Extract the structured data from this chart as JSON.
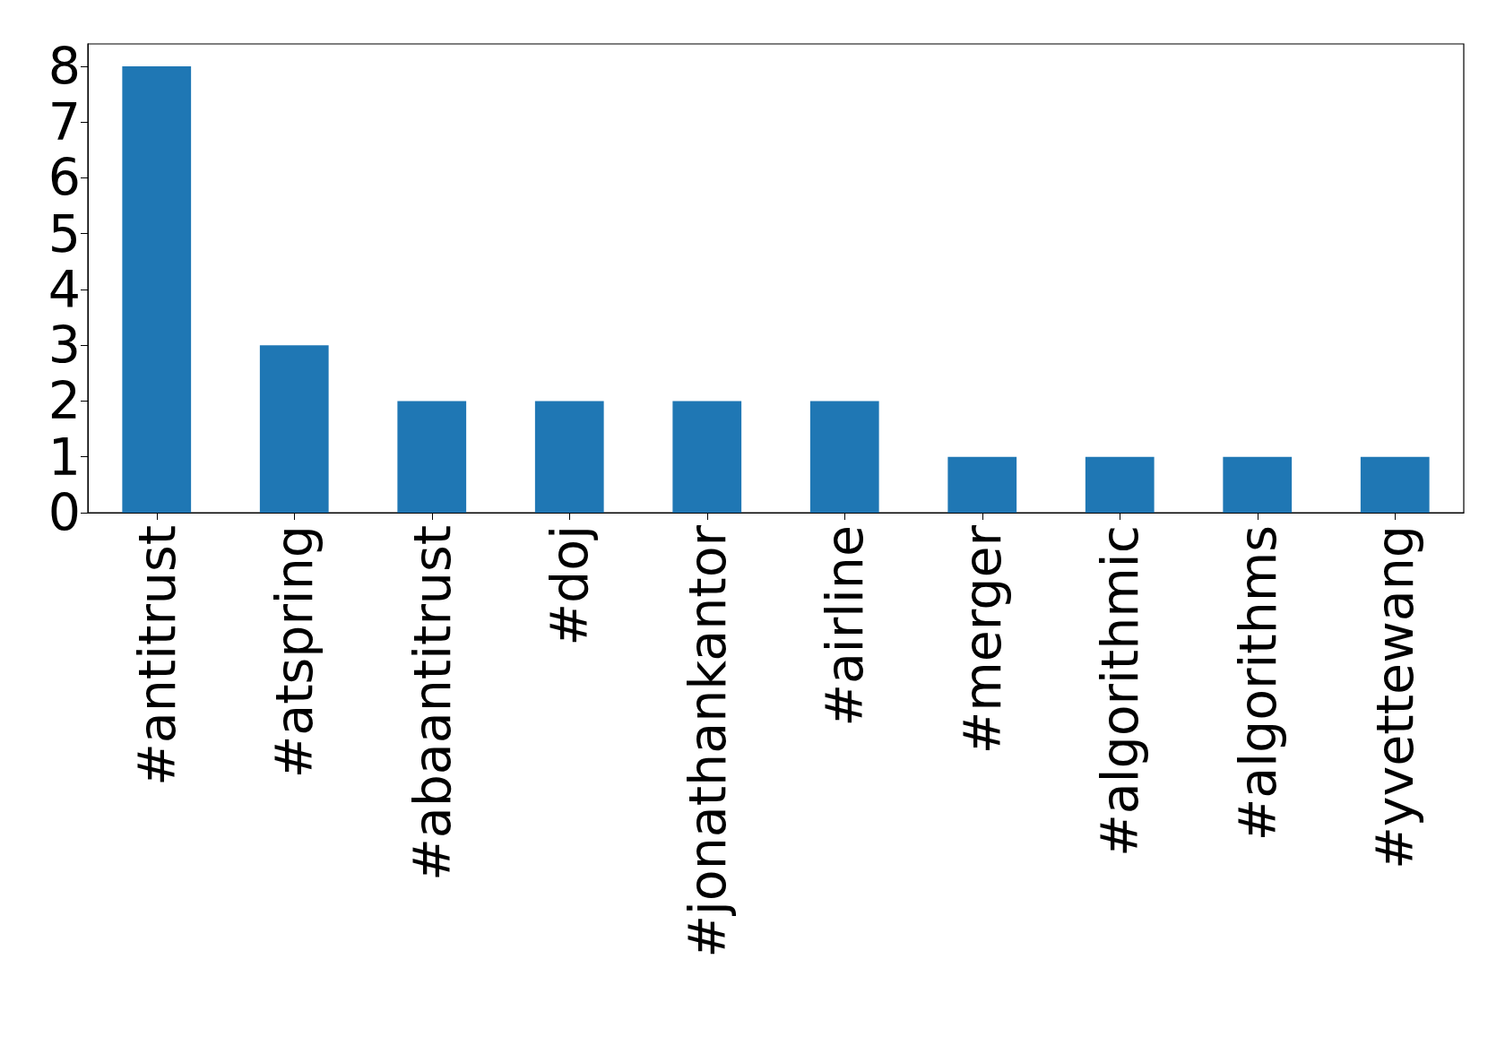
{
  "chart_data": {
    "type": "bar",
    "categories": [
      "#antitrust",
      "#atspring",
      "#abaantitrust",
      "#doj",
      "#jonathankantor",
      "#airline",
      "#merger",
      "#algorithmic",
      "#algorithms",
      "#yvettewang"
    ],
    "values": [
      8,
      3,
      2,
      2,
      2,
      2,
      1,
      1,
      1,
      1
    ],
    "color": "#1f77b4",
    "ylim": [
      0,
      8.4
    ],
    "yticks": [
      0,
      1,
      2,
      3,
      4,
      5,
      6,
      7,
      8
    ],
    "grid": false
  }
}
